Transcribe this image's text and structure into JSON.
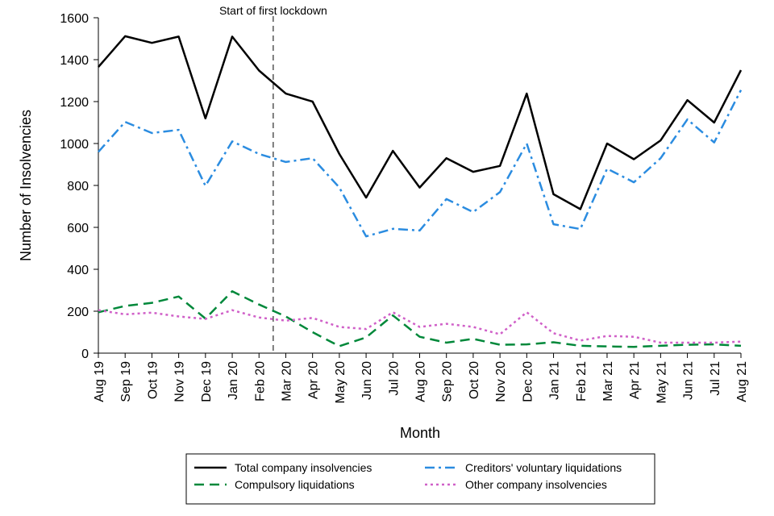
{
  "chart_data": {
    "type": "line",
    "title": "",
    "xlabel": "Month",
    "ylabel": "Number of Insolvencies",
    "ylim": [
      0,
      1600
    ],
    "yticks": [
      0,
      200,
      400,
      600,
      800,
      1000,
      1200,
      1400,
      1600
    ],
    "grid": false,
    "legend_position": "bottom",
    "categories": [
      "Aug 19",
      "Sep 19",
      "Oct 19",
      "Nov 19",
      "Dec 19",
      "Jan 20",
      "Feb 20",
      "Mar 20",
      "Apr 20",
      "May 20",
      "Jun 20",
      "Jul 20",
      "Aug 20",
      "Sep 20",
      "Oct 20",
      "Nov 20",
      "Dec 20",
      "Jan 21",
      "Feb 21",
      "Mar 21",
      "Apr 21",
      "May 21",
      "Jun 21",
      "Jul 21",
      "Aug 21"
    ],
    "annotation": {
      "text": "Start of first lockdown",
      "x_position": "between Feb 20 and Mar 20"
    },
    "series": [
      {
        "name": "Total company insolvencies",
        "color": "#000000",
        "dash": "solid",
        "values": [
          1365,
          1512,
          1480,
          1510,
          1120,
          1510,
          1348,
          1238,
          1200,
          950,
          742,
          965,
          790,
          930,
          865,
          893,
          1238,
          758,
          687,
          1000,
          925,
          1015,
          1207,
          1100,
          1350
        ]
      },
      {
        "name": "Creditors' voluntary liquidations",
        "color": "#2b8ce0",
        "dash": "dashdot",
        "values": [
          960,
          1103,
          1050,
          1065,
          798,
          1010,
          950,
          912,
          930,
          790,
          557,
          593,
          585,
          735,
          673,
          768,
          1000,
          615,
          592,
          880,
          815,
          930,
          1115,
          1005,
          1255
        ]
      },
      {
        "name": "Compulsory liquidations",
        "color": "#00883a",
        "dash": "dashed",
        "values": [
          195,
          225,
          240,
          270,
          165,
          295,
          232,
          175,
          100,
          33,
          75,
          180,
          78,
          50,
          68,
          40,
          42,
          52,
          35,
          32,
          30,
          35,
          40,
          42,
          35
        ]
      },
      {
        "name": "Other company insolvencies",
        "color": "#d060c8",
        "dash": "dotted",
        "values": [
          205,
          185,
          193,
          175,
          163,
          205,
          170,
          155,
          168,
          125,
          115,
          195,
          125,
          140,
          125,
          90,
          195,
          95,
          60,
          82,
          78,
          50,
          50,
          50,
          55
        ]
      }
    ]
  }
}
